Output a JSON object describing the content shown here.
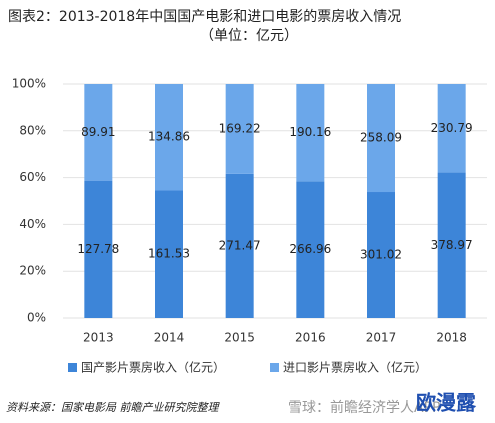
{
  "chart_data": {
    "type": "bar",
    "stacking": "percent",
    "title": "图表2：2013-2018年中国国产电影和进口电影的票房收入情况",
    "subtitle": "（单位：亿元）",
    "categories": [
      "2013",
      "2014",
      "2015",
      "2016",
      "2017",
      "2018"
    ],
    "series": [
      {
        "name": "国产影片票房收入（亿元）",
        "color": "#3d85d8",
        "values": [
          127.78,
          161.53,
          271.47,
          266.96,
          301.02,
          378.97
        ]
      },
      {
        "name": "进口影片票房收入（亿元）",
        "color": "#6ba7ea",
        "values": [
          89.91,
          134.86,
          169.22,
          190.16,
          258.09,
          230.79
        ]
      }
    ],
    "ylim": [
      0,
      100
    ],
    "yticks": [
      {
        "value": 0,
        "label": "0%"
      },
      {
        "value": 20,
        "label": "20%"
      },
      {
        "value": 40,
        "label": "40%"
      },
      {
        "value": 60,
        "label": "60%"
      },
      {
        "value": 80,
        "label": "80%"
      },
      {
        "value": 100,
        "label": "100%"
      }
    ],
    "grid": true,
    "legend": "bottom",
    "source": "资料来源：国家电影局 前瞻产业研究院整理",
    "watermark": "雪球：前瞻经济学人APP",
    "logo": "欧漫露"
  }
}
